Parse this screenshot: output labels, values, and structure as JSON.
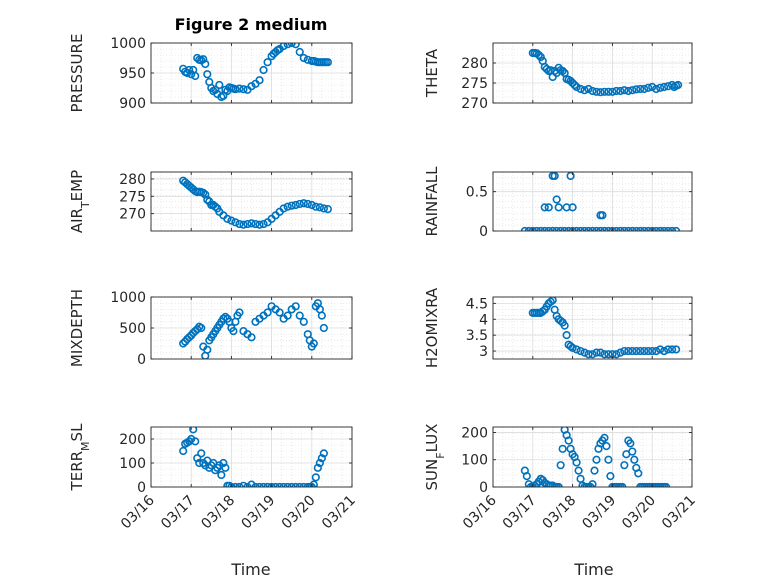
{
  "figure": {
    "title": "Figure 2 medium",
    "xlabel": "Time",
    "x_ticks": [
      "03/16",
      "03/17",
      "03/18",
      "03/19",
      "03/20",
      "03/21"
    ],
    "marker_color": "#0072BD"
  },
  "chart_data": [
    {
      "type": "scatter",
      "ylabel": "PRESSURE",
      "xlim": [
        0,
        5
      ],
      "ylim": [
        900,
        1000
      ],
      "y_ticks": [
        "900",
        "950",
        "1000"
      ],
      "y_tick_values": [
        900,
        950,
        1000
      ],
      "x": [
        0.8,
        0.85,
        0.9,
        0.95,
        1.0,
        1.05,
        1.1,
        1.15,
        1.2,
        1.25,
        1.3,
        1.35,
        1.4,
        1.45,
        1.5,
        1.55,
        1.6,
        1.65,
        1.7,
        1.75,
        1.8,
        1.85,
        1.9,
        1.95,
        2.0,
        2.05,
        2.1,
        2.2,
        2.3,
        2.4,
        2.5,
        2.6,
        2.7,
        2.8,
        2.9,
        3.0,
        3.05,
        3.1,
        3.15,
        3.2,
        3.3,
        3.4,
        3.5,
        3.6,
        3.7,
        3.8,
        3.9,
        4.0,
        4.05,
        4.1,
        4.15,
        4.2,
        4.25,
        4.3,
        4.35,
        4.4
      ],
      "y": [
        957,
        952,
        950,
        955,
        948,
        955,
        945,
        975,
        972,
        971,
        973,
        965,
        948,
        935,
        925,
        920,
        922,
        915,
        930,
        910,
        912,
        922,
        920,
        926,
        925,
        924,
        923,
        924,
        923,
        922,
        928,
        932,
        938,
        955,
        968,
        978,
        982,
        985,
        988,
        990,
        995,
        998,
        1000,
        998,
        985,
        975,
        972,
        970,
        970,
        969,
        968,
        968,
        968,
        968,
        968,
        968
      ]
    },
    {
      "type": "scatter",
      "ylabel": "THETA",
      "xlim": [
        0,
        5
      ],
      "ylim": [
        270,
        285
      ],
      "y_ticks": [
        "270",
        "275",
        "280"
      ],
      "y_tick_values": [
        270,
        275,
        280
      ],
      "x": [
        1.0,
        1.05,
        1.1,
        1.15,
        1.2,
        1.25,
        1.3,
        1.35,
        1.4,
        1.45,
        1.5,
        1.55,
        1.6,
        1.65,
        1.7,
        1.75,
        1.8,
        1.85,
        1.9,
        1.95,
        2.0,
        2.05,
        2.1,
        2.2,
        2.3,
        2.4,
        2.5,
        2.6,
        2.7,
        2.8,
        2.9,
        3.0,
        3.1,
        3.2,
        3.3,
        3.4,
        3.5,
        3.6,
        3.7,
        3.8,
        3.9,
        4.0,
        4.1,
        4.2,
        4.3,
        4.4,
        4.5,
        4.55,
        4.6,
        4.65
      ],
      "y": [
        282.5,
        282.5,
        282.4,
        282,
        281.5,
        280.5,
        279,
        278.5,
        278,
        278.2,
        276.5,
        278,
        277.5,
        278.8,
        278.2,
        278,
        277.5,
        276,
        275.8,
        275.5,
        275,
        274.5,
        274,
        273.5,
        273.2,
        273.5,
        273,
        272.8,
        272.7,
        272.8,
        272.8,
        272.8,
        273,
        273,
        273.2,
        273,
        273.2,
        273.4,
        273.5,
        273.5,
        273.8,
        274,
        273.5,
        273.8,
        274,
        274.2,
        274.5,
        274,
        274.3,
        274.5
      ]
    },
    {
      "type": "scatter",
      "ylabel": "AIR_TEMP",
      "xlim": [
        0,
        5
      ],
      "ylim": [
        265,
        282
      ],
      "y_ticks": [
        "270",
        "275",
        "280"
      ],
      "y_tick_values": [
        270,
        275,
        280
      ],
      "x": [
        0.8,
        0.85,
        0.9,
        0.95,
        1.0,
        1.05,
        1.1,
        1.15,
        1.2,
        1.25,
        1.3,
        1.35,
        1.4,
        1.45,
        1.5,
        1.55,
        1.6,
        1.65,
        1.7,
        1.8,
        1.9,
        2.0,
        2.1,
        2.2,
        2.3,
        2.4,
        2.5,
        2.6,
        2.7,
        2.8,
        2.9,
        3.0,
        3.1,
        3.2,
        3.3,
        3.4,
        3.5,
        3.6,
        3.7,
        3.8,
        3.9,
        4.0,
        4.1,
        4.2,
        4.3,
        4.4
      ],
      "y": [
        279.5,
        279,
        278.5,
        278,
        277.5,
        277,
        276.5,
        276.2,
        276.3,
        276.2,
        276,
        275.5,
        274,
        273.5,
        272.5,
        272.5,
        272,
        271.5,
        270.5,
        269.5,
        268.5,
        268,
        267.5,
        267,
        266.8,
        267,
        267.2,
        267,
        266.8,
        267,
        267.5,
        268.5,
        269.5,
        270.5,
        271.5,
        272,
        272.3,
        272.5,
        272.8,
        273,
        272.8,
        272.5,
        272,
        271.8,
        271.5,
        271.3
      ]
    },
    {
      "type": "scatter",
      "ylabel": "RAINFALL",
      "xlim": [
        0,
        5
      ],
      "ylim": [
        0,
        0.75
      ],
      "y_ticks": [
        "0",
        "0.5"
      ],
      "y_tick_values": [
        0,
        0.5
      ],
      "x": [
        0.8,
        0.9,
        1.0,
        1.1,
        1.2,
        1.3,
        1.4,
        1.5,
        1.6,
        1.7,
        1.8,
        1.9,
        2.0,
        2.1,
        2.2,
        2.3,
        2.4,
        2.5,
        2.6,
        2.7,
        2.8,
        2.9,
        3.0,
        3.1,
        3.2,
        3.3,
        3.4,
        3.5,
        3.6,
        3.7,
        3.8,
        3.9,
        4.0,
        4.1,
        4.2,
        4.3,
        4.4,
        4.5,
        4.6,
        1.3,
        1.5,
        1.55,
        1.4,
        1.6,
        1.65,
        1.85,
        1.95,
        2.0,
        2.7,
        2.75
      ],
      "y": [
        0,
        0,
        0,
        0,
        0,
        0,
        0,
        0,
        0,
        0,
        0,
        0,
        0,
        0,
        0,
        0,
        0,
        0,
        0,
        0,
        0,
        0,
        0,
        0,
        0,
        0,
        0,
        0,
        0,
        0,
        0,
        0,
        0,
        0,
        0,
        0,
        0,
        0,
        0,
        0.3,
        0.7,
        0.7,
        0.3,
        0.4,
        0.3,
        0.3,
        0.7,
        0.3,
        0.2,
        0.2
      ]
    },
    {
      "type": "scatter",
      "ylabel": "MIXDEPTH",
      "xlim": [
        0,
        5
      ],
      "ylim": [
        0,
        1000
      ],
      "y_ticks": [
        "0",
        "500",
        "1000"
      ],
      "y_tick_values": [
        0,
        500,
        1000
      ],
      "x": [
        0.8,
        0.85,
        0.9,
        0.95,
        1.0,
        1.05,
        1.1,
        1.15,
        1.2,
        1.25,
        1.3,
        1.35,
        1.4,
        1.45,
        1.5,
        1.55,
        1.6,
        1.65,
        1.7,
        1.75,
        1.8,
        1.85,
        1.9,
        1.95,
        2.0,
        2.05,
        2.1,
        2.15,
        2.2,
        2.3,
        2.4,
        2.5,
        2.6,
        2.7,
        2.8,
        2.9,
        3.0,
        3.1,
        3.2,
        3.3,
        3.4,
        3.5,
        3.6,
        3.7,
        3.8,
        3.9,
        3.95,
        4.0,
        4.05,
        4.1,
        4.15,
        4.2,
        4.25,
        4.3
      ],
      "y": [
        250,
        280,
        320,
        350,
        380,
        420,
        450,
        480,
        520,
        500,
        200,
        50,
        150,
        300,
        350,
        400,
        450,
        500,
        550,
        600,
        650,
        680,
        650,
        600,
        500,
        450,
        600,
        700,
        750,
        450,
        400,
        350,
        600,
        650,
        700,
        750,
        850,
        800,
        750,
        650,
        700,
        800,
        850,
        700,
        600,
        400,
        300,
        200,
        250,
        850,
        900,
        800,
        700,
        500
      ]
    },
    {
      "type": "scatter",
      "ylabel": "H2OMIXRA",
      "xlim": [
        0,
        5
      ],
      "ylim": [
        2.75,
        4.7
      ],
      "y_ticks": [
        "3",
        "3.5",
        "4",
        "4.5"
      ],
      "y_tick_values": [
        3,
        3.5,
        4,
        4.5
      ],
      "x": [
        1.0,
        1.05,
        1.1,
        1.15,
        1.2,
        1.25,
        1.3,
        1.35,
        1.4,
        1.45,
        1.5,
        1.55,
        1.6,
        1.65,
        1.7,
        1.75,
        1.8,
        1.85,
        1.9,
        1.95,
        2.0,
        2.1,
        2.2,
        2.3,
        2.4,
        2.5,
        2.6,
        2.7,
        2.8,
        2.9,
        3.0,
        3.1,
        3.2,
        3.3,
        3.4,
        3.5,
        3.6,
        3.7,
        3.8,
        3.9,
        4.0,
        4.1,
        4.2,
        4.3,
        4.4,
        4.5,
        4.6
      ],
      "y": [
        4.2,
        4.2,
        4.2,
        4.2,
        4.2,
        4.25,
        4.3,
        4.4,
        4.5,
        4.55,
        4.6,
        4.3,
        4.1,
        4.0,
        3.95,
        3.9,
        3.8,
        3.5,
        3.2,
        3.15,
        3.1,
        3.05,
        3.0,
        2.95,
        2.9,
        2.9,
        2.95,
        2.95,
        2.9,
        2.9,
        2.9,
        2.9,
        2.95,
        3.0,
        3.0,
        3.0,
        3.0,
        3.0,
        3.0,
        3.0,
        3.0,
        3.0,
        3.05,
        3.0,
        3.05,
        3.05,
        3.05
      ]
    },
    {
      "type": "scatter",
      "ylabel": "TERR_MSL",
      "xlim": [
        0,
        5
      ],
      "ylim": [
        0,
        250
      ],
      "y_ticks": [
        "0",
        "100",
        "200"
      ],
      "y_tick_values": [
        0,
        100,
        200
      ],
      "x": [
        0.8,
        0.85,
        0.9,
        0.95,
        1.0,
        1.05,
        1.1,
        1.15,
        1.2,
        1.25,
        1.3,
        1.35,
        1.4,
        1.45,
        1.5,
        1.55,
        1.6,
        1.65,
        1.7,
        1.75,
        1.8,
        1.85,
        1.9,
        1.95,
        2.0,
        2.1,
        2.2,
        2.3,
        2.4,
        2.5,
        2.6,
        2.7,
        2.8,
        2.9,
        3.0,
        3.1,
        3.2,
        3.3,
        3.4,
        3.5,
        3.6,
        3.7,
        3.8,
        3.9,
        3.95,
        4.0,
        4.05,
        4.1,
        4.15,
        4.2,
        4.25,
        4.3
      ],
      "y": [
        150,
        180,
        185,
        190,
        200,
        240,
        190,
        120,
        100,
        140,
        100,
        90,
        110,
        80,
        90,
        100,
        70,
        80,
        90,
        50,
        100,
        80,
        5,
        5,
        0,
        0,
        0,
        5,
        0,
        10,
        0,
        0,
        0,
        0,
        0,
        0,
        0,
        0,
        0,
        0,
        0,
        0,
        0,
        0,
        0,
        0,
        10,
        40,
        80,
        100,
        120,
        140
      ]
    },
    {
      "type": "scatter",
      "ylabel": "SUN_FLUX",
      "xlim": [
        0,
        5
      ],
      "ylim": [
        0,
        220
      ],
      "y_ticks": [
        "0",
        "100",
        "200"
      ],
      "y_tick_values": [
        0,
        100,
        200
      ],
      "x": [
        0.8,
        0.85,
        0.9,
        0.95,
        1.0,
        1.05,
        1.1,
        1.15,
        1.2,
        1.25,
        1.3,
        1.35,
        1.4,
        1.45,
        1.5,
        1.55,
        1.6,
        1.65,
        1.7,
        1.75,
        1.8,
        1.85,
        1.9,
        1.95,
        2.0,
        2.05,
        2.1,
        2.15,
        2.2,
        2.25,
        2.3,
        2.35,
        2.4,
        2.45,
        2.5,
        2.55,
        2.6,
        2.65,
        2.7,
        2.75,
        2.8,
        2.85,
        2.9,
        2.95,
        3.0,
        3.05,
        3.1,
        3.15,
        3.2,
        3.25,
        3.3,
        3.35,
        3.4,
        3.45,
        3.5,
        3.55,
        3.6,
        3.65,
        3.7,
        3.75,
        3.8,
        3.85,
        3.9,
        3.95,
        4.0,
        4.05,
        4.1,
        4.15,
        4.2,
        4.25,
        4.3,
        4.35
      ],
      "y": [
        60,
        40,
        10,
        0,
        0,
        5,
        10,
        20,
        30,
        25,
        15,
        10,
        5,
        5,
        5,
        0,
        0,
        0,
        80,
        140,
        210,
        190,
        170,
        140,
        120,
        110,
        90,
        60,
        30,
        5,
        0,
        0,
        0,
        0,
        10,
        60,
        100,
        140,
        160,
        170,
        180,
        150,
        100,
        40,
        0,
        0,
        0,
        0,
        0,
        0,
        80,
        120,
        170,
        160,
        130,
        100,
        70,
        50,
        0,
        0,
        0,
        0,
        0,
        0,
        0,
        0,
        0,
        0,
        0,
        0,
        0,
        0
      ]
    }
  ]
}
